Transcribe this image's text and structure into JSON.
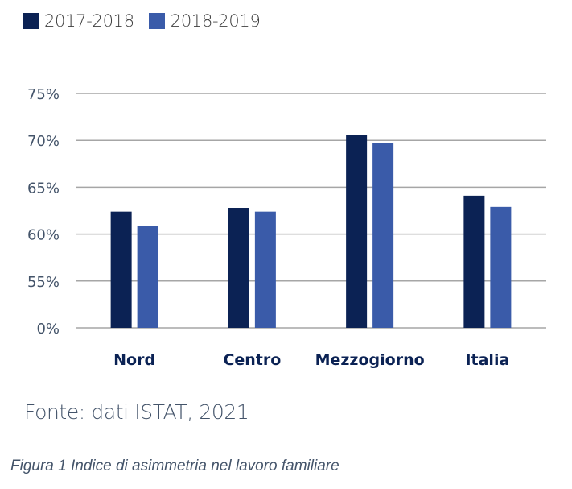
{
  "chart_data": {
    "type": "bar",
    "title": "",
    "xlabel": "",
    "ylabel": "",
    "categories": [
      "Nord",
      "Centro",
      "Mezzogiorno",
      "Italia"
    ],
    "series": [
      {
        "name": "2017-2018",
        "color": "#0B2254",
        "values": [
          62.4,
          62.8,
          70.6,
          64.1
        ]
      },
      {
        "name": "2018-2019",
        "color": "#3A5BA9",
        "values": [
          60.9,
          62.4,
          69.7,
          62.9
        ]
      }
    ],
    "y_ticks": [
      "0%",
      "55%",
      "60%",
      "65%",
      "70%",
      "75%"
    ],
    "y_tick_values": [
      50,
      55,
      60,
      65,
      70,
      75
    ],
    "ylim": [
      50,
      75
    ],
    "axis_break_note": "Bottom tick labeled 0% sits at the 50% position (truncated axis)",
    "grid": true,
    "legend_position": "top-left"
  },
  "legend": {
    "items": [
      {
        "label": "2017-2018",
        "color": "#0B2254"
      },
      {
        "label": "2018-2019",
        "color": "#3A5BA9"
      }
    ]
  },
  "source": "Fonte: dati ISTAT, 2021",
  "caption": "Figura 1 Indice di asimmetria nel lavoro familiare"
}
